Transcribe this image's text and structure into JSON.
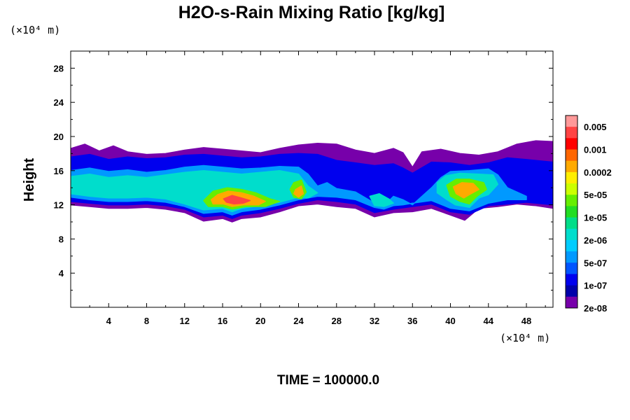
{
  "chart_data": {
    "type": "heatmap",
    "title": "H2O-s-Rain Mixing Ratio [kg/kg]",
    "ylabel": "Height",
    "x_unit": "(×10⁴ m)",
    "y_unit": "(×10⁴ m)",
    "xlim": [
      0,
      50.8
    ],
    "ylim": [
      0,
      30
    ],
    "x_ticks": [
      "4",
      "8",
      "12",
      "16",
      "20",
      "24",
      "28",
      "32",
      "36",
      "40",
      "44",
      "48"
    ],
    "x_tick_values": [
      4,
      8,
      12,
      16,
      20,
      24,
      28,
      32,
      36,
      40,
      44,
      48
    ],
    "y_ticks": [
      "4",
      "8",
      "12",
      "16",
      "20",
      "24",
      "28"
    ],
    "y_tick_values": [
      4,
      8,
      12,
      16,
      20,
      24,
      28
    ],
    "footer": "TIME = 100000.0",
    "legend": {
      "labels": [
        "0.005",
        "0.001",
        "0.0002",
        "5e-05",
        "1e-05",
        "2e-06",
        "5e-07",
        "1e-07",
        "2e-08"
      ],
      "colors": [
        "#ff9999",
        "#ff4444",
        "#ff0000",
        "#ff6600",
        "#ffaa00",
        "#ffee00",
        "#ccff00",
        "#66ee00",
        "#22dd22",
        "#00dd88",
        "#00ddcc",
        "#00ccff",
        "#0099ff",
        "#0055ff",
        "#0000ee",
        "#0000aa",
        "#7700aa"
      ]
    },
    "layers": [
      {
        "level": 0,
        "pts": [
          [
            0,
            18.6
          ],
          [
            1.5,
            19.1
          ],
          [
            3,
            18.3
          ],
          [
            4.5,
            18.9
          ],
          [
            6,
            18.2
          ],
          [
            8,
            17.9
          ],
          [
            10,
            18.0
          ],
          [
            12,
            18.4
          ],
          [
            14,
            18.7
          ],
          [
            16,
            18.5
          ],
          [
            18,
            18.3
          ],
          [
            20,
            18.1
          ],
          [
            22,
            18.6
          ],
          [
            24,
            19.0
          ],
          [
            26,
            19.2
          ],
          [
            28,
            19.1
          ],
          [
            30,
            18.4
          ],
          [
            32,
            18.0
          ],
          [
            34,
            18.6
          ],
          [
            35,
            18.1
          ],
          [
            36,
            16.4
          ],
          [
            37,
            18.2
          ],
          [
            39,
            18.5
          ],
          [
            41,
            18.0
          ],
          [
            43,
            17.8
          ],
          [
            45,
            18.2
          ],
          [
            47,
            19.1
          ],
          [
            49,
            19.5
          ],
          [
            50.8,
            19.4
          ],
          [
            50.8,
            11.6
          ],
          [
            49,
            11.9
          ],
          [
            47,
            12.1
          ],
          [
            45,
            11.8
          ],
          [
            43,
            11.6
          ],
          [
            41.5,
            10.2
          ],
          [
            40,
            10.8
          ],
          [
            38,
            11.6
          ],
          [
            36,
            11.2
          ],
          [
            34,
            11.1
          ],
          [
            32,
            10.6
          ],
          [
            30,
            11.6
          ],
          [
            28,
            11.8
          ],
          [
            26,
            12.1
          ],
          [
            24,
            11.9
          ],
          [
            22,
            11.2
          ],
          [
            20,
            10.6
          ],
          [
            18,
            10.4
          ],
          [
            17,
            10.0
          ],
          [
            16,
            10.4
          ],
          [
            14,
            10.1
          ],
          [
            12,
            11.1
          ],
          [
            10,
            11.5
          ],
          [
            8,
            11.7
          ],
          [
            6,
            11.6
          ],
          [
            4,
            11.6
          ],
          [
            2,
            11.8
          ],
          [
            0,
            12.0
          ]
        ]
      },
      {
        "level": 2,
        "pts": [
          [
            0,
            17.6
          ],
          [
            2,
            17.9
          ],
          [
            4,
            17.3
          ],
          [
            6,
            17.6
          ],
          [
            8,
            17.4
          ],
          [
            10,
            17.5
          ],
          [
            12,
            17.8
          ],
          [
            14,
            17.9
          ],
          [
            16,
            17.7
          ],
          [
            18,
            17.5
          ],
          [
            20,
            17.6
          ],
          [
            22,
            17.9
          ],
          [
            24,
            18.0
          ],
          [
            26,
            17.9
          ],
          [
            28,
            17.2
          ],
          [
            30,
            16.9
          ],
          [
            32,
            16.6
          ],
          [
            34,
            16.8
          ],
          [
            35,
            16.3
          ],
          [
            36,
            15.7
          ],
          [
            38,
            17.0
          ],
          [
            40,
            16.9
          ],
          [
            42,
            16.6
          ],
          [
            44,
            16.9
          ],
          [
            46,
            17.5
          ],
          [
            48,
            17.3
          ],
          [
            50.8,
            17.0
          ],
          [
            50.8,
            12.0
          ],
          [
            48,
            12.3
          ],
          [
            46,
            12.1
          ],
          [
            44,
            11.9
          ],
          [
            42,
            10.9
          ],
          [
            40,
            11.2
          ],
          [
            38,
            12.1
          ],
          [
            36,
            11.8
          ],
          [
            34,
            11.5
          ],
          [
            32,
            11.1
          ],
          [
            30,
            12.1
          ],
          [
            28,
            12.4
          ],
          [
            26,
            12.6
          ],
          [
            24,
            12.2
          ],
          [
            22,
            11.6
          ],
          [
            20,
            11.1
          ],
          [
            18,
            10.8
          ],
          [
            17,
            10.4
          ],
          [
            16,
            10.8
          ],
          [
            14,
            10.6
          ],
          [
            12,
            11.5
          ],
          [
            10,
            11.9
          ],
          [
            8,
            12.1
          ],
          [
            6,
            12.0
          ],
          [
            4,
            12.0
          ],
          [
            2,
            12.2
          ],
          [
            0,
            12.4
          ]
        ]
      },
      {
        "level": 4,
        "pts": [
          [
            0,
            16.0
          ],
          [
            2,
            16.3
          ],
          [
            4,
            15.9
          ],
          [
            6,
            16.1
          ],
          [
            8,
            15.8
          ],
          [
            10,
            16.0
          ],
          [
            12,
            16.4
          ],
          [
            14,
            16.6
          ],
          [
            16,
            16.4
          ],
          [
            18,
            16.2
          ],
          [
            20,
            16.3
          ],
          [
            22,
            16.5
          ],
          [
            24,
            16.4
          ],
          [
            25,
            15.6
          ],
          [
            26,
            14.2
          ],
          [
            27,
            14.6
          ],
          [
            28,
            13.9
          ],
          [
            30,
            13.5
          ],
          [
            32,
            12.2
          ],
          [
            33,
            11.9
          ],
          [
            34,
            13.0
          ],
          [
            35,
            12.6
          ],
          [
            36,
            12.0
          ],
          [
            38,
            14.0
          ],
          [
            39,
            15.2
          ],
          [
            40,
            15.9
          ],
          [
            42,
            16.0
          ],
          [
            44,
            16.2
          ],
          [
            45,
            15.5
          ],
          [
            46,
            14.0
          ],
          [
            47,
            13.5
          ],
          [
            48,
            13.0
          ],
          [
            48,
            12.6
          ],
          [
            46,
            12.6
          ],
          [
            44,
            12.2
          ],
          [
            42,
            11.3
          ],
          [
            40,
            11.6
          ],
          [
            38,
            12.5
          ],
          [
            36,
            12.2
          ],
          [
            35,
            12.0
          ],
          [
            34,
            11.9
          ],
          [
            33,
            11.5
          ],
          [
            32,
            11.7
          ],
          [
            30,
            12.6
          ],
          [
            28,
            12.9
          ],
          [
            26,
            13.0
          ],
          [
            24,
            12.6
          ],
          [
            22,
            12.0
          ],
          [
            20,
            11.5
          ],
          [
            18,
            11.2
          ],
          [
            17,
            10.8
          ],
          [
            16,
            11.2
          ],
          [
            14,
            11.0
          ],
          [
            12,
            11.8
          ],
          [
            10,
            12.3
          ],
          [
            8,
            12.5
          ],
          [
            6,
            12.4
          ],
          [
            4,
            12.4
          ],
          [
            2,
            12.6
          ],
          [
            0,
            12.9
          ]
        ]
      },
      {
        "level": 6,
        "pts": [
          [
            0,
            15.3
          ],
          [
            2,
            15.6
          ],
          [
            4,
            15.2
          ],
          [
            6,
            15.4
          ],
          [
            8,
            15.2
          ],
          [
            10,
            15.5
          ],
          [
            12,
            15.8
          ],
          [
            14,
            16.0
          ],
          [
            16,
            15.8
          ],
          [
            18,
            15.6
          ],
          [
            20,
            15.8
          ],
          [
            22,
            16.0
          ],
          [
            24,
            15.6
          ],
          [
            25,
            14.2
          ],
          [
            26,
            13.4
          ],
          [
            25,
            12.8
          ],
          [
            24,
            12.9
          ],
          [
            22,
            12.3
          ],
          [
            20,
            11.9
          ],
          [
            18,
            11.6
          ],
          [
            17,
            11.2
          ],
          [
            16,
            11.6
          ],
          [
            14,
            11.4
          ],
          [
            12,
            12.1
          ],
          [
            10,
            12.7
          ],
          [
            8,
            12.9
          ],
          [
            6,
            12.8
          ],
          [
            4,
            12.8
          ],
          [
            2,
            13.0
          ],
          [
            0,
            13.3
          ]
        ]
      },
      {
        "level": 6,
        "pts": [
          [
            38.6,
            14.6
          ],
          [
            39.5,
            15.4
          ],
          [
            41,
            15.7
          ],
          [
            43,
            15.6
          ],
          [
            44.5,
            15.5
          ],
          [
            45,
            14.4
          ],
          [
            44,
            13.2
          ],
          [
            43,
            12.8
          ],
          [
            42,
            11.7
          ],
          [
            40.5,
            12.0
          ],
          [
            39.5,
            12.7
          ],
          [
            38.6,
            13.4
          ]
        ]
      },
      {
        "level": 6,
        "pts": [
          [
            31.5,
            13.0
          ],
          [
            32.5,
            13.3
          ],
          [
            33.5,
            12.7
          ],
          [
            34,
            12.2
          ],
          [
            33,
            11.8
          ],
          [
            32,
            11.9
          ]
        ]
      },
      {
        "level": 9,
        "pts": [
          [
            15,
            13.6
          ],
          [
            16.5,
            14.0
          ],
          [
            18,
            13.8
          ],
          [
            19.5,
            13.4
          ],
          [
            21,
            12.7
          ],
          [
            22,
            12.4
          ],
          [
            20.5,
            11.8
          ],
          [
            18.5,
            11.8
          ],
          [
            17,
            11.5
          ],
          [
            16,
            11.8
          ],
          [
            14.5,
            11.8
          ],
          [
            14,
            12.5
          ]
        ]
      },
      {
        "level": 9,
        "pts": [
          [
            23.5,
            14.6
          ],
          [
            24.3,
            14.9
          ],
          [
            24.8,
            13.5
          ],
          [
            24.3,
            12.7
          ],
          [
            23.5,
            12.9
          ],
          [
            23.1,
            13.8
          ]
        ]
      },
      {
        "level": 9,
        "pts": [
          [
            39.6,
            14.3
          ],
          [
            40.6,
            15.0
          ],
          [
            42,
            15.0
          ],
          [
            43.5,
            14.6
          ],
          [
            43.8,
            13.8
          ],
          [
            42.8,
            13.0
          ],
          [
            42,
            12.1
          ],
          [
            41,
            12.4
          ],
          [
            40,
            13.0
          ]
        ]
      },
      {
        "level": 12,
        "pts": [
          [
            15.5,
            13.2
          ],
          [
            16.6,
            13.6
          ],
          [
            18,
            13.4
          ],
          [
            19.3,
            13.0
          ],
          [
            20.5,
            12.4
          ],
          [
            19.8,
            12.0
          ],
          [
            18.2,
            12.0
          ],
          [
            17,
            11.8
          ],
          [
            16.1,
            12.1
          ],
          [
            15,
            12.1
          ],
          [
            14.8,
            12.6
          ]
        ]
      },
      {
        "level": 12,
        "pts": [
          [
            23.7,
            13.8
          ],
          [
            24.3,
            14.2
          ],
          [
            24.5,
            13.3
          ],
          [
            24.0,
            12.9
          ],
          [
            23.5,
            13.3
          ]
        ]
      },
      {
        "level": 12,
        "pts": [
          [
            40.3,
            14.1
          ],
          [
            41.2,
            14.6
          ],
          [
            42.4,
            14.5
          ],
          [
            43.0,
            13.8
          ],
          [
            42.0,
            13.2
          ],
          [
            41.4,
            12.8
          ],
          [
            40.6,
            13.3
          ]
        ]
      },
      {
        "level": 15,
        "pts": [
          [
            16.1,
            12.7
          ],
          [
            17,
            13.1
          ],
          [
            18,
            12.8
          ],
          [
            18.9,
            12.5
          ],
          [
            18.2,
            12.2
          ],
          [
            17.2,
            12.1
          ],
          [
            16.4,
            12.3
          ]
        ]
      }
    ]
  }
}
